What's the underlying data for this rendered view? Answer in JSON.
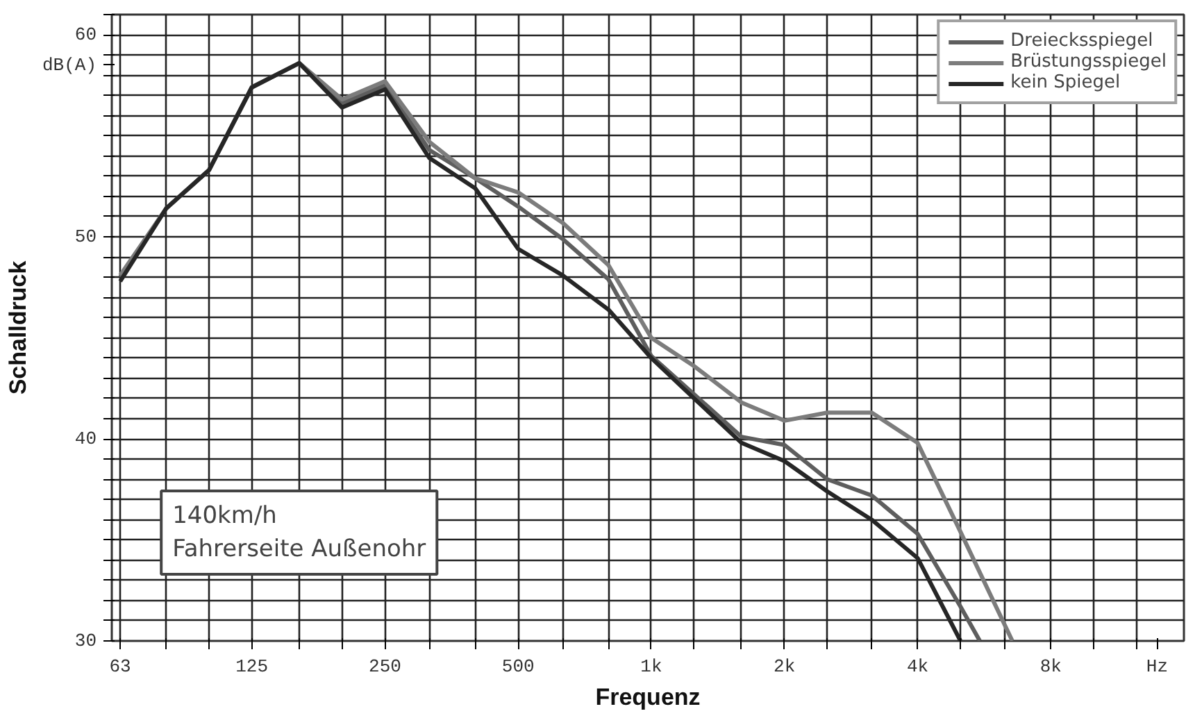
{
  "chart_data": {
    "type": "line",
    "xlabel": "Frequenz",
    "ylabel": "Schalldruck",
    "annotations": [
      "140km/h",
      "Fahrerseite Außenohr",
      "dB(A)",
      "Hz"
    ],
    "log": "x",
    "xlim": [
      60.3,
      16000
    ],
    "ylim": [
      30,
      61
    ],
    "xticks": [
      63,
      {
        "value": 80,
        "label": null
      },
      {
        "value": 100,
        "label": null
      },
      125,
      {
        "value": 160,
        "label": null
      },
      {
        "value": 200,
        "label": null
      },
      250,
      {
        "value": 315,
        "label": null
      },
      {
        "value": 400,
        "label": null
      },
      500,
      {
        "value": 630,
        "label": null
      },
      {
        "value": 800,
        "label": null
      },
      {
        "value": 1000,
        "label": "1k"
      },
      {
        "value": 1250,
        "label": null
      },
      {
        "value": 1600,
        "label": null
      },
      {
        "value": 2000,
        "label": "2k"
      },
      {
        "value": 2500,
        "label": null
      },
      {
        "value": 3150,
        "label": null
      },
      {
        "value": 4000,
        "label": "4k"
      },
      {
        "value": 5000,
        "label": null
      },
      {
        "value": 6300,
        "label": null
      },
      {
        "value": 8000,
        "label": "8k"
      },
      {
        "value": 10000,
        "label": null
      },
      {
        "value": 12500,
        "label": null
      }
    ],
    "yticks": [
      30,
      {
        "value": 31,
        "label": null
      },
      {
        "value": 32,
        "label": null
      },
      {
        "value": 33,
        "label": null
      },
      {
        "value": 34,
        "label": null
      },
      {
        "value": 35,
        "label": null
      },
      {
        "value": 36,
        "label": null
      },
      {
        "value": 37,
        "label": null
      },
      {
        "value": 38,
        "label": null
      },
      {
        "value": 39,
        "label": null
      },
      40,
      {
        "value": 41,
        "label": null
      },
      {
        "value": 42,
        "label": null
      },
      {
        "value": 43,
        "label": null
      },
      {
        "value": 44,
        "label": null
      },
      {
        "value": 45,
        "label": null
      },
      {
        "value": 46,
        "label": null
      },
      {
        "value": 47,
        "label": null
      },
      {
        "value": 48,
        "label": null
      },
      {
        "value": 49,
        "label": null
      },
      50,
      {
        "value": 51,
        "label": null
      },
      {
        "value": 52,
        "label": null
      },
      {
        "value": 53,
        "label": null
      },
      {
        "value": 54,
        "label": null
      },
      {
        "value": 55,
        "label": null
      },
      {
        "value": 56,
        "label": null
      },
      {
        "value": 57,
        "label": null
      },
      {
        "value": 58,
        "label": null
      },
      {
        "value": 59,
        "label": null
      },
      60,
      {
        "value": 61,
        "label": null
      }
    ],
    "grid": true,
    "legend": "top right",
    "line_style": "solid",
    "series": [
      {
        "name": "Dreiecksspiegel",
        "color": "#5e5e5e",
        "x": [
          63,
          80,
          100,
          125,
          160,
          200,
          250,
          315,
          400,
          500,
          630,
          800,
          1000,
          1250,
          1600,
          2000,
          2500,
          3150,
          4000,
          5000,
          5530
        ],
        "values": [
          48.0,
          51.4,
          53.3,
          57.4,
          58.6,
          56.6,
          57.5,
          54.3,
          52.9,
          51.5,
          49.9,
          47.9,
          44.1,
          42.2,
          40.1,
          39.7,
          38.0,
          37.2,
          35.3,
          31.7,
          30
        ]
      },
      {
        "name": "Brüstungsspiegel",
        "color": "#7c7c7c",
        "x": [
          63,
          80,
          100,
          125,
          160,
          200,
          250,
          315,
          400,
          500,
          630,
          800,
          1000,
          1250,
          1600,
          2000,
          2500,
          3150,
          4000,
          5000,
          6550
        ],
        "values": [
          48.1,
          51.4,
          53.3,
          57.4,
          58.6,
          56.8,
          57.7,
          54.7,
          52.9,
          52.2,
          50.7,
          48.6,
          45.0,
          43.6,
          41.8,
          40.9,
          41.3,
          41.3,
          39.8,
          35.4,
          30
        ]
      },
      {
        "name": "kein Spiegel",
        "color": "#262626",
        "x": [
          63,
          80,
          100,
          125,
          160,
          200,
          250,
          315,
          400,
          500,
          630,
          800,
          1000,
          1250,
          1600,
          2000,
          2500,
          3150,
          4000,
          5000
        ],
        "values": [
          47.8,
          51.4,
          53.3,
          57.4,
          58.6,
          56.4,
          57.3,
          53.9,
          52.4,
          49.4,
          48.1,
          46.4,
          44.0,
          42.0,
          39.8,
          38.9,
          37.4,
          36.0,
          34.1,
          30
        ]
      }
    ]
  }
}
